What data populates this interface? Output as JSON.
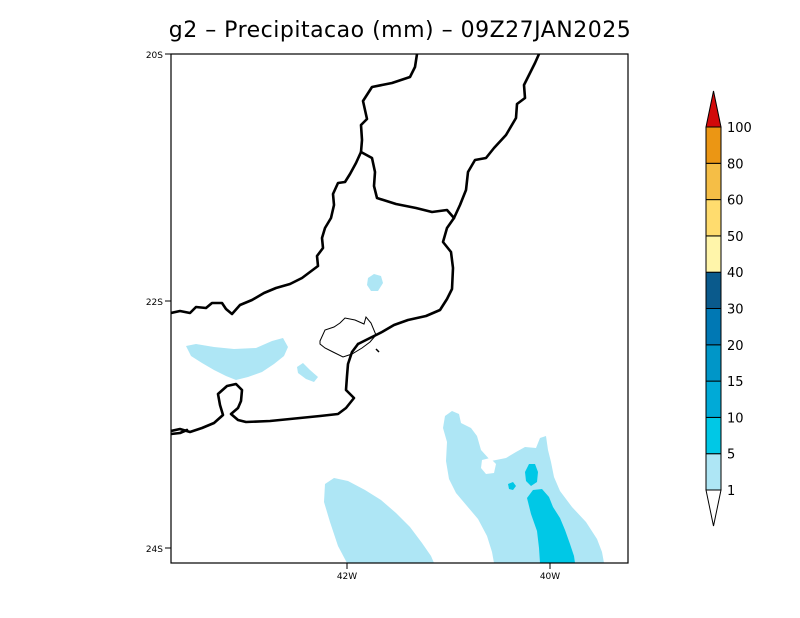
{
  "title": "g2 – Precipitacao (mm) – 09Z27JAN2025",
  "axes": {
    "lat_labels": [
      "20S",
      "22S",
      "24S"
    ],
    "lon_labels": [
      "42W",
      "40W"
    ]
  },
  "colorbar": {
    "levels": [
      "1",
      "5",
      "10",
      "15",
      "20",
      "30",
      "40",
      "50",
      "60",
      "80",
      "100"
    ],
    "colors": [
      "#aee6f5",
      "#00c8e6",
      "#00aad7",
      "#0096c8",
      "#0078b4",
      "#0a5a8c",
      "#fff5aa",
      "#ffdc6e",
      "#f5be46",
      "#eb9614",
      "#d20a0a"
    ],
    "under_color": "#ffffff"
  },
  "precip_colors": {
    "light": "#aee6f5",
    "medium": "#00c8e6"
  }
}
